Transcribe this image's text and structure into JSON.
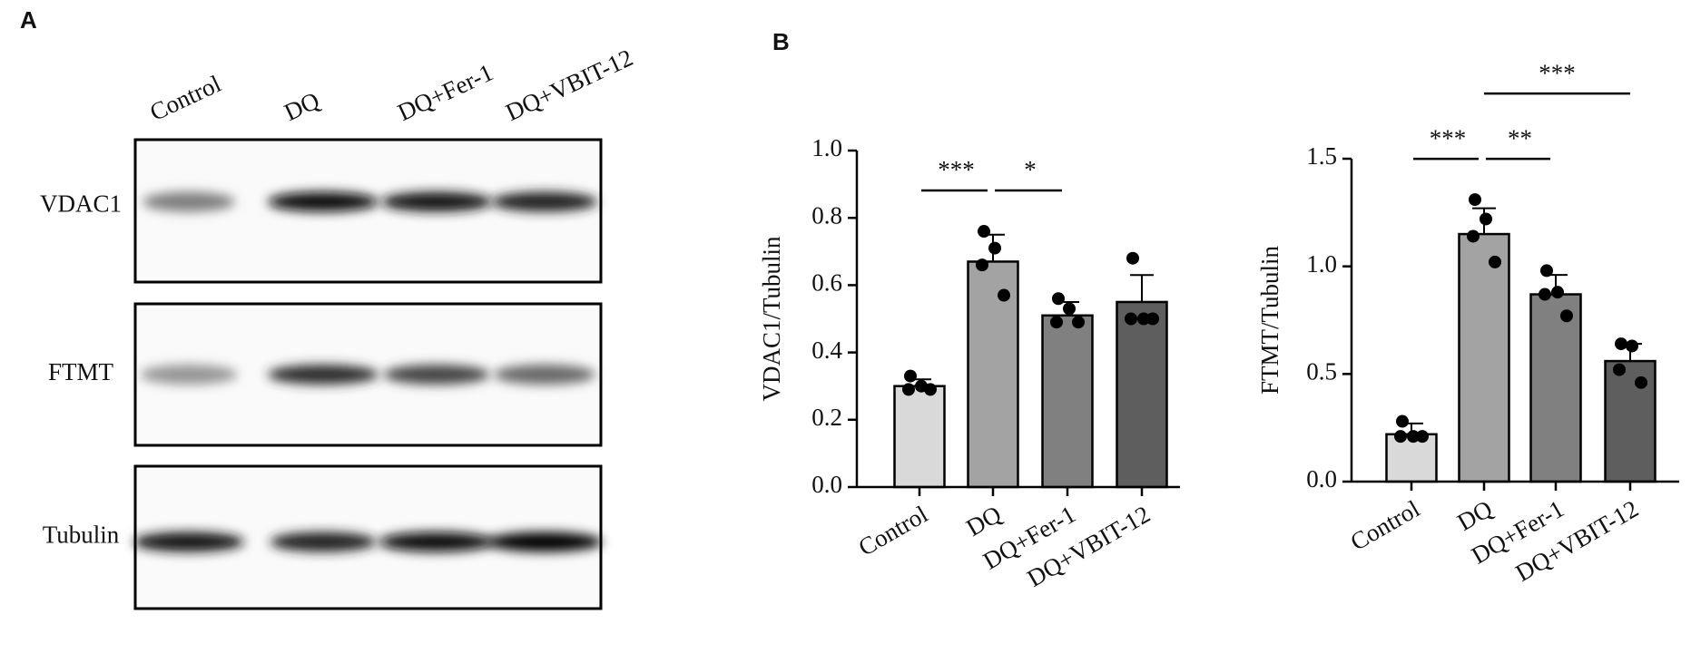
{
  "panel_a": {
    "label": "A",
    "lanes": [
      "Control",
      "DQ",
      "DQ+Fer-1",
      "DQ+VBIT-12"
    ],
    "rows": [
      "VDAC1",
      "FTMT",
      "Tubulin"
    ]
  },
  "panel_b": {
    "label": "B"
  },
  "chart_data": [
    {
      "type": "bar",
      "ylabel": "VDAC1/Tubulin",
      "categories": [
        "Control",
        "DQ",
        "DQ+Fer-1",
        "DQ+VBIT-12"
      ],
      "values": [
        0.3,
        0.67,
        0.51,
        0.55
      ],
      "errors": [
        0.02,
        0.08,
        0.04,
        0.08
      ],
      "points": [
        [
          0.33,
          0.3,
          0.29,
          0.29
        ],
        [
          0.76,
          0.71,
          0.66,
          0.57
        ],
        [
          0.56,
          0.53,
          0.49,
          0.49
        ],
        [
          0.68,
          0.5,
          0.5,
          0.5
        ]
      ],
      "colors": [
        "#d9d9d9",
        "#a3a3a3",
        "#808080",
        "#5e5e5e"
      ],
      "ylim": [
        0,
        1.0
      ],
      "yticks": [
        {
          "value": 0,
          "label": "0.0"
        },
        0.2,
        0.4,
        0.6,
        0.8,
        {
          "value": 1.0,
          "label": "1.0"
        }
      ],
      "comparisons": [
        {
          "label": "***",
          "groups": [
            "Control",
            "DQ"
          ]
        },
        {
          "label": "*",
          "groups": [
            "DQ",
            "DQ+Fer-1"
          ]
        }
      ]
    },
    {
      "type": "bar",
      "ylabel": "FTMT/Tubulin",
      "categories": [
        "Control",
        "DQ",
        "DQ+Fer-1",
        "DQ+VBIT-12"
      ],
      "values": [
        0.22,
        1.15,
        0.87,
        0.56
      ],
      "errors": [
        0.05,
        0.12,
        0.09,
        0.08
      ],
      "points": [
        [
          0.28,
          0.21,
          0.21,
          0.21
        ],
        [
          1.31,
          1.22,
          1.14,
          1.02
        ],
        [
          0.98,
          0.88,
          0.87,
          0.77
        ],
        [
          0.64,
          0.63,
          0.52,
          0.46
        ]
      ],
      "colors": [
        "#d9d9d9",
        "#a3a3a3",
        "#808080",
        "#5e5e5e"
      ],
      "ylim": [
        0,
        1.5
      ],
      "yticks": [
        {
          "value": 0,
          "label": "0.0"
        },
        0.5,
        {
          "value": 1.0,
          "label": "1.0"
        },
        {
          "value": 1.5,
          "label": "1.5"
        }
      ],
      "comparisons": [
        {
          "label": "***",
          "groups": [
            "Control",
            "DQ"
          ]
        },
        {
          "label": "**",
          "groups": [
            "DQ",
            "DQ+Fer-1"
          ]
        },
        {
          "label": "***",
          "groups": [
            "DQ",
            "DQ+VBIT-12"
          ]
        }
      ]
    }
  ]
}
